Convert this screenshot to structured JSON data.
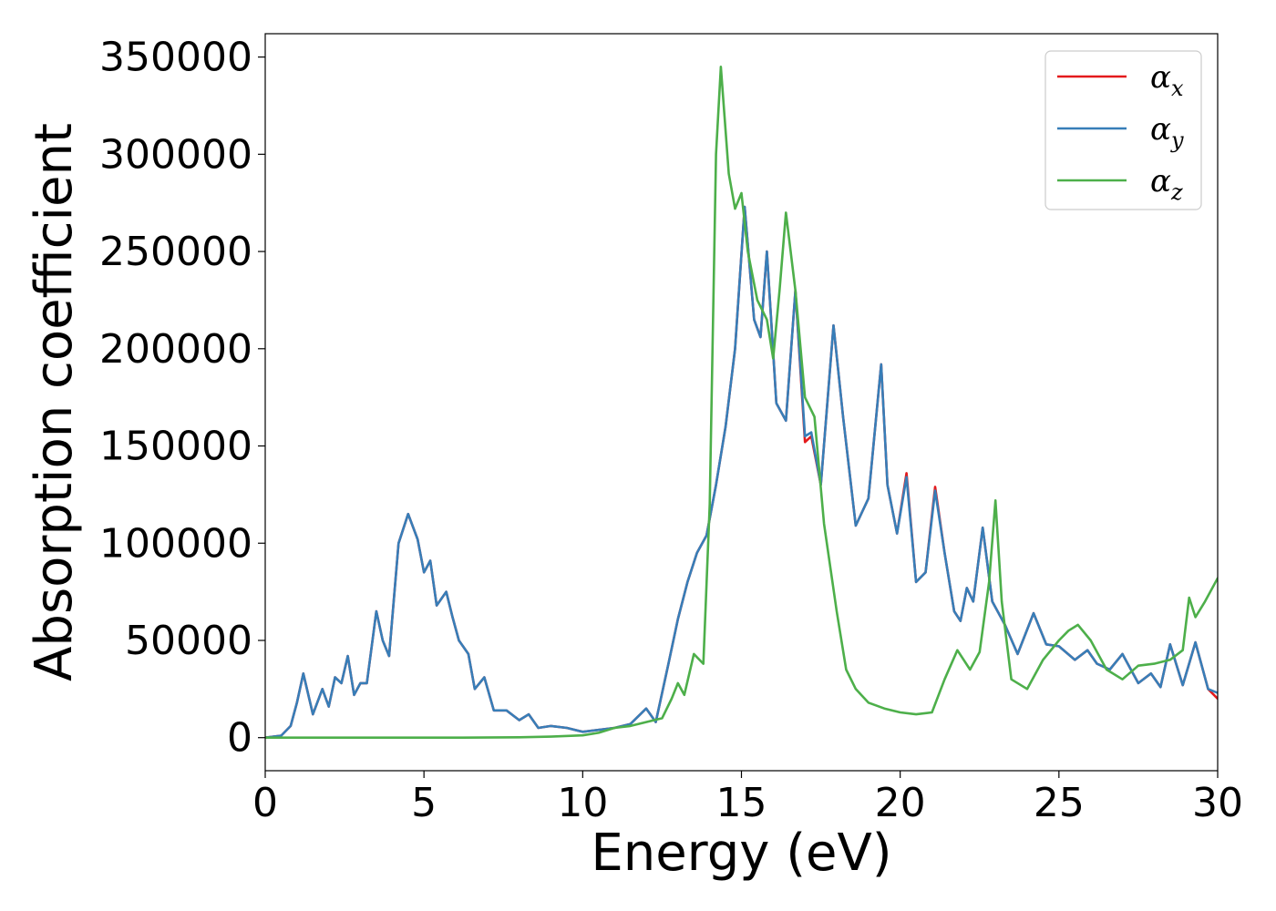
{
  "chart_data": {
    "type": "line",
    "xlabel": "Energy (eV)",
    "ylabel": "Absorption coefficient",
    "xlim": [
      0,
      30
    ],
    "ylim": [
      -17000,
      362000
    ],
    "xticks": [
      0,
      5,
      10,
      15,
      20,
      25,
      30
    ],
    "xtick_labels": [
      "0",
      "5",
      "10",
      "15",
      "20",
      "25",
      "30"
    ],
    "yticks": [
      0,
      50000,
      100000,
      150000,
      200000,
      250000,
      300000,
      350000
    ],
    "ytick_labels": [
      "0",
      "50000",
      "100000",
      "150000",
      "200000",
      "250000",
      "300000",
      "350000"
    ],
    "grid": false,
    "legend_position": "top-right",
    "colors": {
      "x": "#e41a1c",
      "y": "#377eb8",
      "z": "#4daf4a"
    },
    "series": [
      {
        "name": "αx",
        "legend_main": "α",
        "legend_sub": "x",
        "color": "#e41a1c",
        "x": [
          0,
          0.5,
          0.8,
          1.0,
          1.2,
          1.5,
          1.8,
          2.0,
          2.2,
          2.4,
          2.6,
          2.8,
          3.0,
          3.2,
          3.5,
          3.7,
          3.9,
          4.2,
          4.5,
          4.8,
          5.0,
          5.2,
          5.4,
          5.7,
          5.9,
          6.1,
          6.4,
          6.6,
          6.9,
          7.2,
          7.6,
          8.0,
          8.3,
          8.6,
          9.0,
          9.5,
          10.0,
          10.5,
          11.0,
          11.5,
          12.0,
          12.3,
          12.7,
          13.0,
          13.3,
          13.6,
          13.9,
          14.2,
          14.5,
          14.8,
          15.1,
          15.4,
          15.6,
          15.8,
          16.1,
          16.4,
          16.7,
          17.0,
          17.2,
          17.5,
          17.9,
          18.2,
          18.6,
          19.0,
          19.4,
          19.6,
          19.9,
          20.2,
          20.5,
          20.8,
          21.1,
          21.4,
          21.7,
          21.9,
          22.1,
          22.3,
          22.6,
          22.9,
          23.3,
          23.7,
          24.2,
          24.6,
          25.0,
          25.5,
          25.9,
          26.2,
          26.6,
          27.0,
          27.5,
          27.9,
          28.2,
          28.5,
          28.9,
          29.3,
          29.7,
          30.0
        ],
        "y": [
          0,
          1000,
          6000,
          18000,
          33000,
          12000,
          25000,
          16000,
          31000,
          28000,
          42000,
          22000,
          28000,
          28000,
          65000,
          50000,
          42000,
          100000,
          115000,
          102000,
          85000,
          91000,
          68000,
          75000,
          62000,
          50000,
          43000,
          25000,
          31000,
          14000,
          14000,
          9000,
          12000,
          5000,
          6000,
          5000,
          3000,
          4000,
          5000,
          7000,
          15000,
          8000,
          38000,
          61000,
          80000,
          95000,
          104000,
          130000,
          160000,
          200000,
          273000,
          215000,
          206000,
          250000,
          172000,
          163000,
          230000,
          152000,
          155000,
          130000,
          212000,
          165000,
          109000,
          123000,
          192000,
          130000,
          105000,
          136000,
          80000,
          85000,
          129000,
          95000,
          65000,
          60000,
          77000,
          70000,
          108000,
          70000,
          58000,
          43000,
          64000,
          48000,
          47000,
          40000,
          45000,
          38000,
          35000,
          43000,
          28000,
          33000,
          26000,
          48000,
          27000,
          49000,
          25000,
          20000
        ]
      },
      {
        "name": "αy",
        "legend_main": "α",
        "legend_sub": "y",
        "color": "#377eb8",
        "x": [
          0,
          0.5,
          0.8,
          1.0,
          1.2,
          1.5,
          1.8,
          2.0,
          2.2,
          2.4,
          2.6,
          2.8,
          3.0,
          3.2,
          3.5,
          3.7,
          3.9,
          4.2,
          4.5,
          4.8,
          5.0,
          5.2,
          5.4,
          5.7,
          5.9,
          6.1,
          6.4,
          6.6,
          6.9,
          7.2,
          7.6,
          8.0,
          8.3,
          8.6,
          9.0,
          9.5,
          10.0,
          10.5,
          11.0,
          11.5,
          12.0,
          12.3,
          12.7,
          13.0,
          13.3,
          13.6,
          13.9,
          14.2,
          14.5,
          14.8,
          15.1,
          15.4,
          15.6,
          15.8,
          16.1,
          16.4,
          16.7,
          17.0,
          17.2,
          17.5,
          17.9,
          18.2,
          18.6,
          19.0,
          19.4,
          19.6,
          19.9,
          20.2,
          20.5,
          20.8,
          21.1,
          21.4,
          21.7,
          21.9,
          22.1,
          22.3,
          22.6,
          22.9,
          23.3,
          23.7,
          24.2,
          24.6,
          25.0,
          25.5,
          25.9,
          26.2,
          26.6,
          27.0,
          27.5,
          27.9,
          28.2,
          28.5,
          28.9,
          29.3,
          29.7,
          30.0
        ],
        "y": [
          0,
          1000,
          6000,
          18000,
          33000,
          12000,
          25000,
          16000,
          31000,
          28000,
          42000,
          22000,
          28000,
          28000,
          65000,
          50000,
          42000,
          100000,
          115000,
          102000,
          85000,
          91000,
          68000,
          75000,
          62000,
          50000,
          43000,
          25000,
          31000,
          14000,
          14000,
          9000,
          12000,
          5000,
          6000,
          5000,
          3000,
          4000,
          5000,
          7000,
          15000,
          8000,
          38000,
          61000,
          80000,
          95000,
          104000,
          130000,
          160000,
          200000,
          273000,
          215000,
          206000,
          250000,
          172000,
          163000,
          230000,
          155000,
          157000,
          130000,
          212000,
          165000,
          109000,
          123000,
          192000,
          130000,
          105000,
          134000,
          80000,
          85000,
          127000,
          95000,
          65000,
          60000,
          77000,
          70000,
          108000,
          70000,
          58000,
          43000,
          64000,
          48000,
          47000,
          40000,
          45000,
          38000,
          35000,
          43000,
          28000,
          33000,
          26000,
          48000,
          27000,
          49000,
          25000,
          23000
        ]
      },
      {
        "name": "αz",
        "legend_main": "α",
        "legend_sub": "z",
        "color": "#4daf4a",
        "x": [
          0,
          2,
          4,
          6,
          8,
          9,
          10,
          10.5,
          11,
          11.5,
          12,
          12.5,
          12.8,
          13.0,
          13.2,
          13.5,
          13.8,
          14.0,
          14.2,
          14.35,
          14.6,
          14.8,
          15.0,
          15.2,
          15.5,
          15.8,
          16.0,
          16.2,
          16.4,
          16.7,
          17.0,
          17.3,
          17.6,
          18.0,
          18.3,
          18.6,
          19.0,
          19.5,
          20.0,
          20.5,
          21.0,
          21.4,
          21.8,
          22.2,
          22.5,
          22.8,
          23.0,
          23.2,
          23.5,
          24.0,
          24.5,
          25.0,
          25.3,
          25.6,
          26.0,
          26.5,
          27.0,
          27.5,
          28.0,
          28.5,
          28.9,
          29.1,
          29.3,
          29.6,
          30.0
        ],
        "y": [
          0,
          0,
          0,
          0,
          200,
          500,
          1200,
          2500,
          5000,
          6000,
          8000,
          10000,
          20000,
          28000,
          22000,
          43000,
          38000,
          120000,
          300000,
          345000,
          290000,
          272000,
          280000,
          250000,
          225000,
          215000,
          195000,
          230000,
          270000,
          230000,
          175000,
          165000,
          110000,
          65000,
          35000,
          25000,
          18000,
          15000,
          13000,
          12000,
          13000,
          30000,
          45000,
          35000,
          44000,
          80000,
          122000,
          70000,
          30000,
          25000,
          40000,
          50000,
          55000,
          58000,
          50000,
          35000,
          30000,
          37000,
          38000,
          40000,
          45000,
          72000,
          62000,
          70000,
          82000
        ]
      }
    ]
  }
}
